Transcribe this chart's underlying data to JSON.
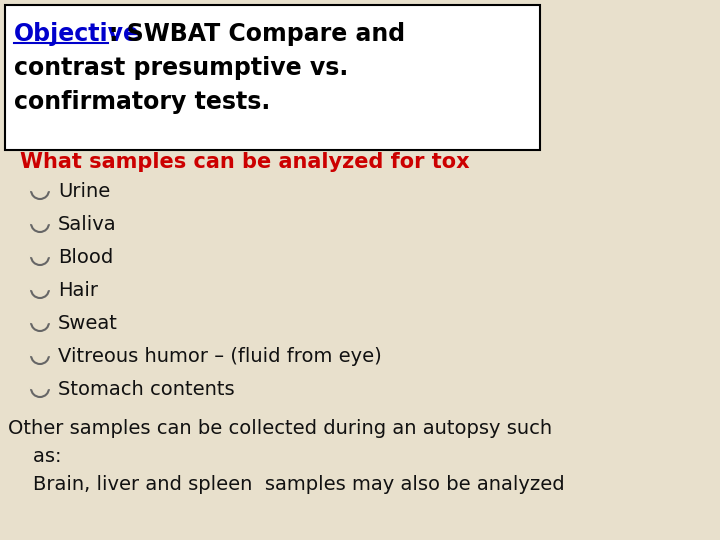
{
  "bg_color": "#e8e0cc",
  "title_box_color": "#ffffff",
  "title_line1_plain": ": SWBAT Compare and",
  "title_line1_underline": "Objective",
  "title_line2": "contrast presumptive vs.",
  "title_line3": "confirmatory tests.",
  "title_text_color": "#000000",
  "title_underline_color": "#0000cc",
  "section_heading": "What samples can be analyzed for tox",
  "section_heading_color": "#cc0000",
  "bullet_items": [
    "Urine",
    "Saliva",
    "Blood",
    "Hair",
    "Sweat",
    "Vitreous humor – (fluid from eye)",
    "Stomach contents"
  ],
  "bullet_color": "#666666",
  "body_text_color": "#111111",
  "footer_line1": "Other samples can be collected during an autopsy such",
  "footer_line2": "    as:",
  "footer_line3": "    Brain, liver and spleen  samples may also be analyzed"
}
